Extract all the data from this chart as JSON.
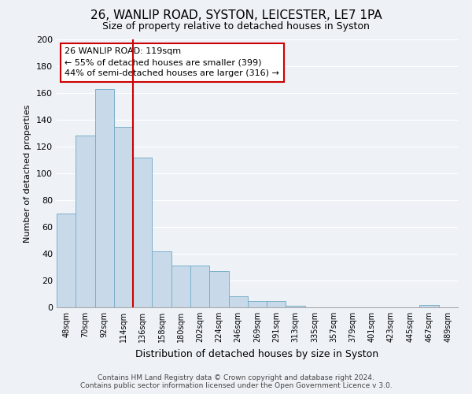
{
  "title": "26, WANLIP ROAD, SYSTON, LEICESTER, LE7 1PA",
  "subtitle": "Size of property relative to detached houses in Syston",
  "xlabel": "Distribution of detached houses by size in Syston",
  "ylabel": "Number of detached properties",
  "bar_labels": [
    "48sqm",
    "70sqm",
    "92sqm",
    "114sqm",
    "136sqm",
    "158sqm",
    "180sqm",
    "202sqm",
    "224sqm",
    "246sqm",
    "269sqm",
    "291sqm",
    "313sqm",
    "335sqm",
    "357sqm",
    "379sqm",
    "401sqm",
    "423sqm",
    "445sqm",
    "467sqm",
    "489sqm"
  ],
  "bar_values": [
    70,
    128,
    163,
    135,
    112,
    42,
    31,
    31,
    27,
    8,
    5,
    5,
    1,
    0,
    0,
    0,
    0,
    0,
    0,
    2,
    0
  ],
  "bar_color": "#c8daea",
  "bar_edge_color": "#7aafc8",
  "vline_x": 3.5,
  "vline_color": "#cc0000",
  "annotation_text": "26 WANLIP ROAD: 119sqm\n← 55% of detached houses are smaller (399)\n44% of semi-detached houses are larger (316) →",
  "annotation_box_facecolor": "#ffffff",
  "annotation_box_edgecolor": "#cc0000",
  "ylim": [
    0,
    200
  ],
  "yticks": [
    0,
    20,
    40,
    60,
    80,
    100,
    120,
    140,
    160,
    180,
    200
  ],
  "background_color": "#eef2f7",
  "grid_color": "#ffffff",
  "footer_line1": "Contains HM Land Registry data © Crown copyright and database right 2024.",
  "footer_line2": "Contains public sector information licensed under the Open Government Licence v 3.0."
}
